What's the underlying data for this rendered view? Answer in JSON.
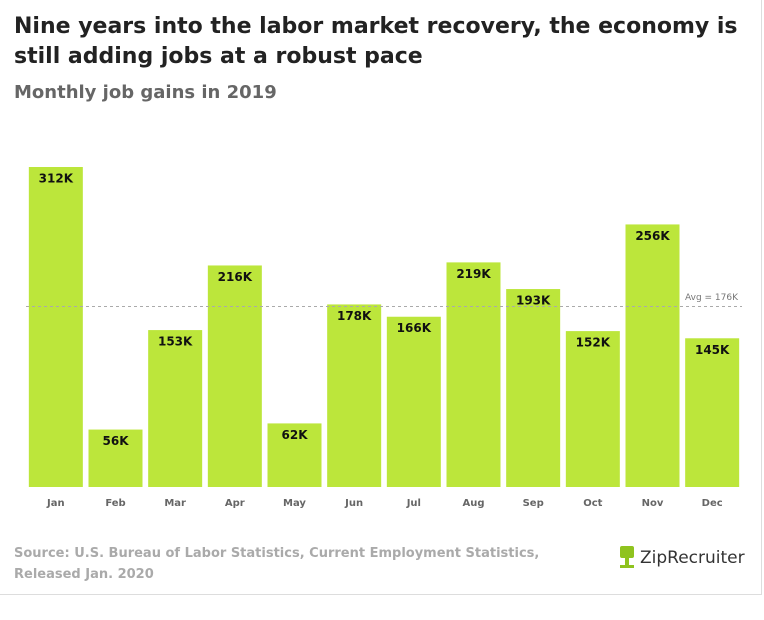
{
  "chart_data": {
    "type": "bar",
    "title": "Nine years into the labor market recovery, the economy is still adding jobs at a robust pace",
    "subtitle": "Monthly job gains in 2019",
    "categories": [
      "Jan",
      "Feb",
      "Mar",
      "Apr",
      "May",
      "Jun",
      "Jul",
      "Aug",
      "Sep",
      "Oct",
      "Nov",
      "Dec"
    ],
    "values": [
      312,
      56,
      153,
      216,
      62,
      178,
      166,
      219,
      193,
      152,
      256,
      145
    ],
    "value_labels": [
      "312K",
      "56K",
      "153K",
      "216K",
      "62K",
      "178K",
      "166K",
      "219K",
      "193K",
      "152K",
      "256K",
      "145K"
    ],
    "color": "#bce63b",
    "ylim": [
      0,
      312
    ],
    "average": 176,
    "average_label": "Avg = 176K",
    "source": "Source: U.S. Bureau of Labor Statistics, Current Employment Statistics, Released Jan. 2020",
    "logo": "ZipRecruiter"
  }
}
